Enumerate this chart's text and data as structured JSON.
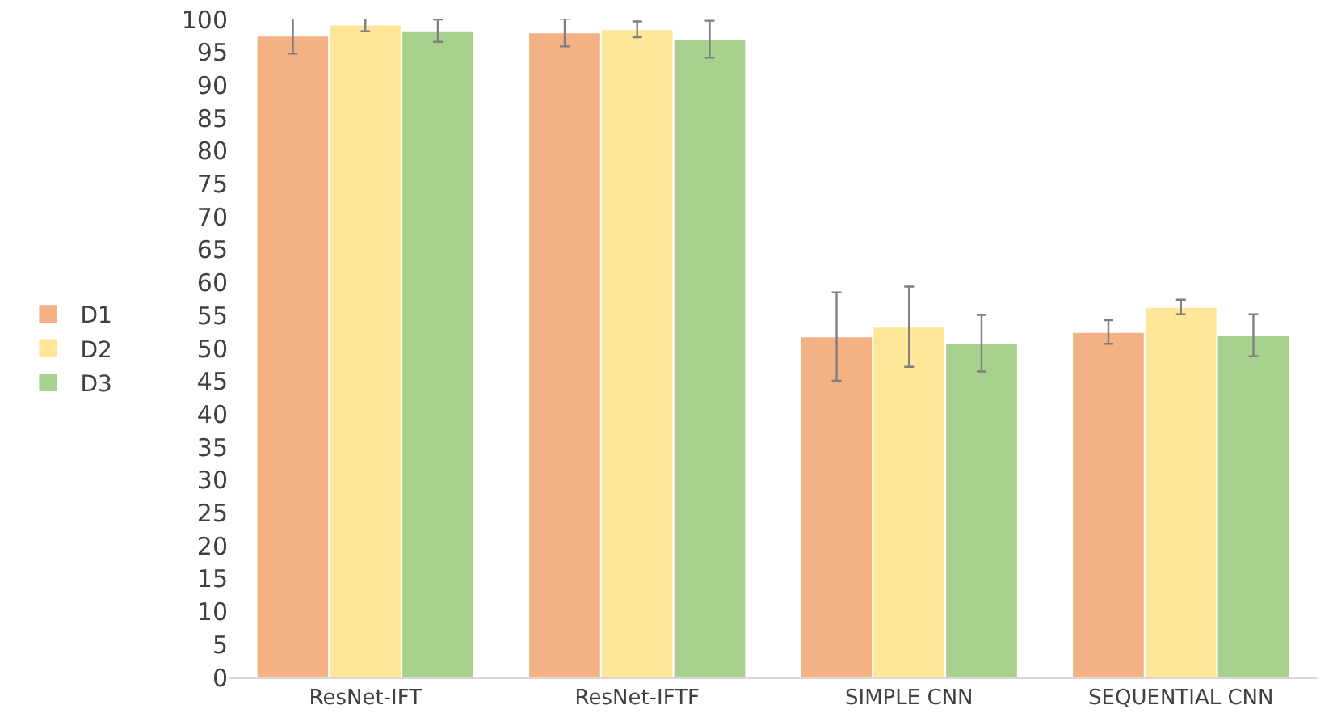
{
  "chart_data": {
    "type": "bar",
    "categories": [
      "ResNet-IFT",
      "ResNet-IFTF",
      "SIMPLE CNN",
      "SEQUENTIAL CNN"
    ],
    "series": [
      {
        "name": "D1",
        "color": "#f4b183",
        "values": [
          97.5,
          98,
          51.8,
          52.5
        ],
        "errors": [
          2.7,
          2.1,
          6.7,
          1.8
        ]
      },
      {
        "name": "D2",
        "color": "#ffe699",
        "values": [
          99.2,
          98.5,
          53.3,
          56.3
        ],
        "errors": [
          1,
          1.2,
          6.1,
          1.1
        ]
      },
      {
        "name": "D3",
        "color": "#a9d18e",
        "values": [
          98.3,
          97,
          50.8,
          52
        ],
        "errors": [
          1.7,
          2.8,
          4.3,
          3.2
        ]
      }
    ],
    "ylim": [
      0,
      100
    ],
    "yticks": [
      0,
      5,
      10,
      15,
      20,
      25,
      30,
      35,
      40,
      45,
      50,
      55,
      60,
      65,
      70,
      75,
      80,
      85,
      90,
      95,
      100
    ],
    "grid": false,
    "legend": "left"
  }
}
